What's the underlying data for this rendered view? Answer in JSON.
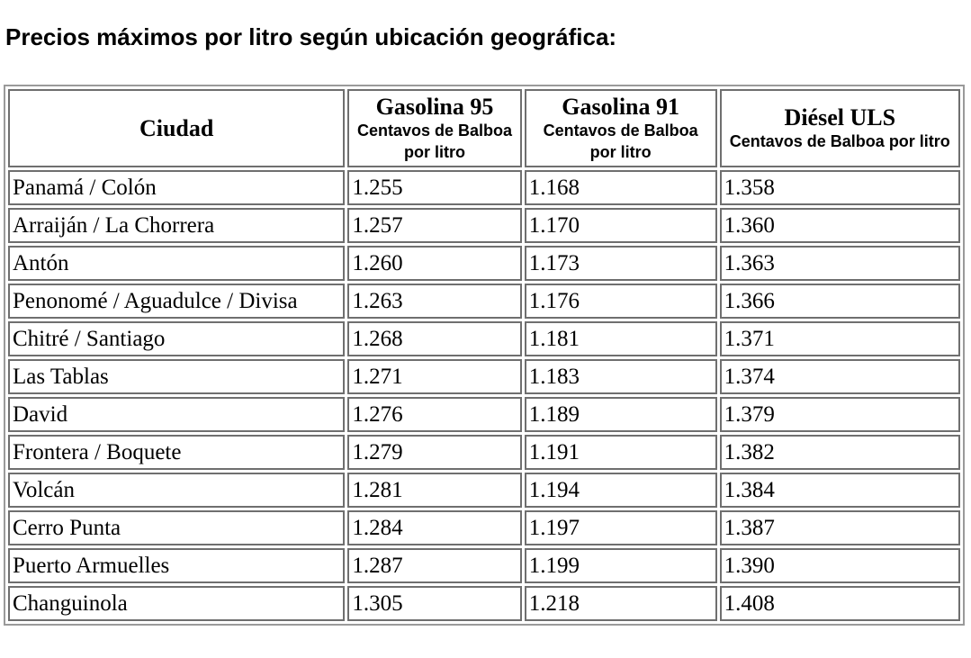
{
  "title": "Precios máximos por litro según ubicación geográfica:",
  "table": {
    "headers": {
      "city": "Ciudad",
      "g95": {
        "name": "Gasolina 95",
        "unit": "Centavos de Balboa por litro"
      },
      "g91": {
        "name": "Gasolina 91",
        "unit": "Centavos de Balboa por litro"
      },
      "diesel": {
        "name": "Diésel ULS",
        "unit": "Centavos de Balboa por litro"
      }
    },
    "rows": [
      {
        "city": "Panamá / Colón",
        "g95": "1.255",
        "g91": "1.168",
        "diesel": "1.358"
      },
      {
        "city": "Arraiján / La Chorrera",
        "g95": "1.257",
        "g91": "1.170",
        "diesel": "1.360"
      },
      {
        "city": "Antón",
        "g95": "1.260",
        "g91": "1.173",
        "diesel": "1.363"
      },
      {
        "city": "Penonomé / Aguadulce / Divisa",
        "g95": "1.263",
        "g91": "1.176",
        "diesel": "1.366"
      },
      {
        "city": "Chitré / Santiago",
        "g95": "1.268",
        "g91": "1.181",
        "diesel": "1.371"
      },
      {
        "city": "Las Tablas",
        "g95": "1.271",
        "g91": "1.183",
        "diesel": "1.374"
      },
      {
        "city": "David",
        "g95": "1.276",
        "g91": "1.189",
        "diesel": "1.379"
      },
      {
        "city": "Frontera / Boquete",
        "g95": "1.279",
        "g91": "1.191",
        "diesel": "1.382"
      },
      {
        "city": "Volcán",
        "g95": "1.281",
        "g91": "1.194",
        "diesel": "1.384"
      },
      {
        "city": "Cerro Punta",
        "g95": "1.284",
        "g91": "1.197",
        "diesel": "1.387"
      },
      {
        "city": "Puerto Armuelles",
        "g95": "1.287",
        "g91": "1.199",
        "diesel": "1.390"
      },
      {
        "city": "Changuinola",
        "g95": "1.305",
        "g91": "1.218",
        "diesel": "1.408"
      }
    ]
  }
}
